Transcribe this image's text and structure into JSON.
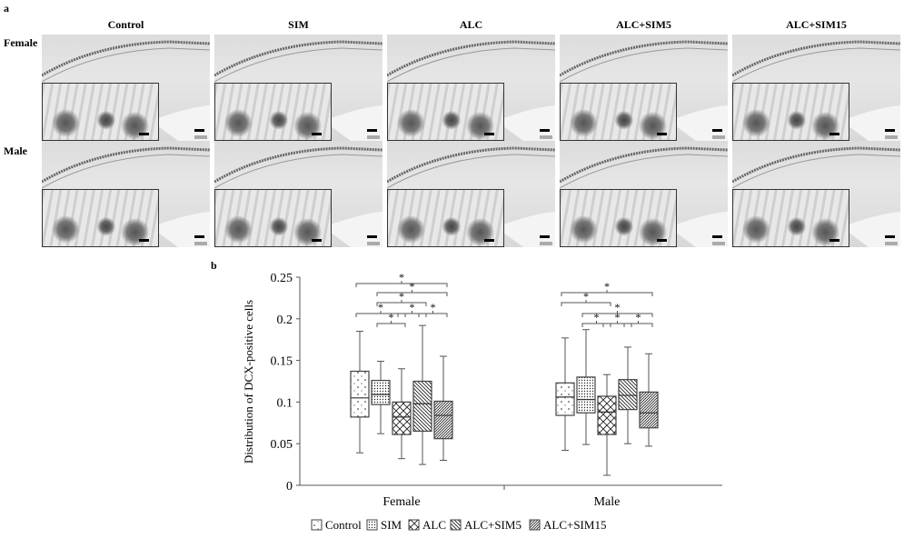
{
  "panel_a": {
    "label": "a",
    "columns": [
      "Control",
      "SIM",
      "ALC",
      "ALC+SIM5",
      "ALC+SIM15"
    ],
    "rows": [
      "Female",
      "Male"
    ]
  },
  "panel_b": {
    "label": "b"
  },
  "chart_data": {
    "type": "box",
    "ylabel": "Distribution of DCX-positive cells",
    "ylim": [
      0,
      0.25
    ],
    "yticks": [
      "0",
      "0.05",
      "0.1",
      "0.15",
      "0.2",
      "0.25"
    ],
    "yticks_values": [
      0,
      0.05,
      0.1,
      0.15,
      0.2,
      0.25
    ],
    "categories": [
      "Female",
      "Male"
    ],
    "legend": [
      "Control",
      "SIM",
      "ALC",
      "ALC+SIM5",
      "ALC+SIM15"
    ],
    "legend_position": "bottom",
    "groups": [
      {
        "name": "Female",
        "boxes": [
          {
            "series": "Control",
            "min": 0.039,
            "q1": 0.082,
            "median": 0.105,
            "q3": 0.137,
            "max": 0.185
          },
          {
            "series": "SIM",
            "min": 0.062,
            "q1": 0.097,
            "median": 0.109,
            "q3": 0.126,
            "max": 0.149
          },
          {
            "series": "ALC",
            "min": 0.032,
            "q1": 0.061,
            "median": 0.082,
            "q3": 0.1,
            "max": 0.14
          },
          {
            "series": "ALC+SIM5",
            "min": 0.025,
            "q1": 0.065,
            "median": 0.098,
            "q3": 0.125,
            "max": 0.192
          },
          {
            "series": "ALC+SIM15",
            "min": 0.03,
            "q1": 0.056,
            "median": 0.084,
            "q3": 0.101,
            "max": 0.155
          }
        ],
        "significance": [
          {
            "pair": [
              0,
              4
            ],
            "level": 1,
            "mark": "*"
          },
          {
            "pair": [
              1,
              4
            ],
            "level": 2,
            "mark": "*"
          },
          {
            "pair": [
              1,
              3
            ],
            "level": 3,
            "mark": "*"
          },
          {
            "pair": [
              0,
              2
            ],
            "level": 4,
            "mark": "*"
          },
          {
            "pair": [
              2,
              3
            ],
            "level": 4,
            "mark": "*"
          },
          {
            "pair": [
              3,
              4
            ],
            "level": 4,
            "mark": "*"
          },
          {
            "pair": [
              1,
              2
            ],
            "level": 5,
            "mark": "*"
          }
        ]
      },
      {
        "name": "Male",
        "boxes": [
          {
            "series": "Control",
            "min": 0.042,
            "q1": 0.084,
            "median": 0.106,
            "q3": 0.123,
            "max": 0.177
          },
          {
            "series": "SIM",
            "min": 0.049,
            "q1": 0.087,
            "median": 0.103,
            "q3": 0.13,
            "max": 0.187
          },
          {
            "series": "ALC",
            "min": 0.012,
            "q1": 0.061,
            "median": 0.088,
            "q3": 0.107,
            "max": 0.133
          },
          {
            "series": "ALC+SIM5",
            "min": 0.05,
            "q1": 0.091,
            "median": 0.108,
            "q3": 0.127,
            "max": 0.166
          },
          {
            "series": "ALC+SIM15",
            "min": 0.047,
            "q1": 0.069,
            "median": 0.087,
            "q3": 0.112,
            "max": 0.158
          }
        ],
        "significance": [
          {
            "pair": [
              0,
              4
            ],
            "level": 2,
            "mark": "*"
          },
          {
            "pair": [
              0,
              2
            ],
            "level": 3,
            "mark": "*"
          },
          {
            "pair": [
              1,
              4
            ],
            "level": 4,
            "mark": "*"
          },
          {
            "pair": [
              1,
              2
            ],
            "level": 5,
            "mark": "*"
          },
          {
            "pair": [
              2,
              3
            ],
            "level": 5,
            "mark": "*"
          },
          {
            "pair": [
              3,
              4
            ],
            "level": 5,
            "mark": "*"
          }
        ]
      }
    ]
  }
}
